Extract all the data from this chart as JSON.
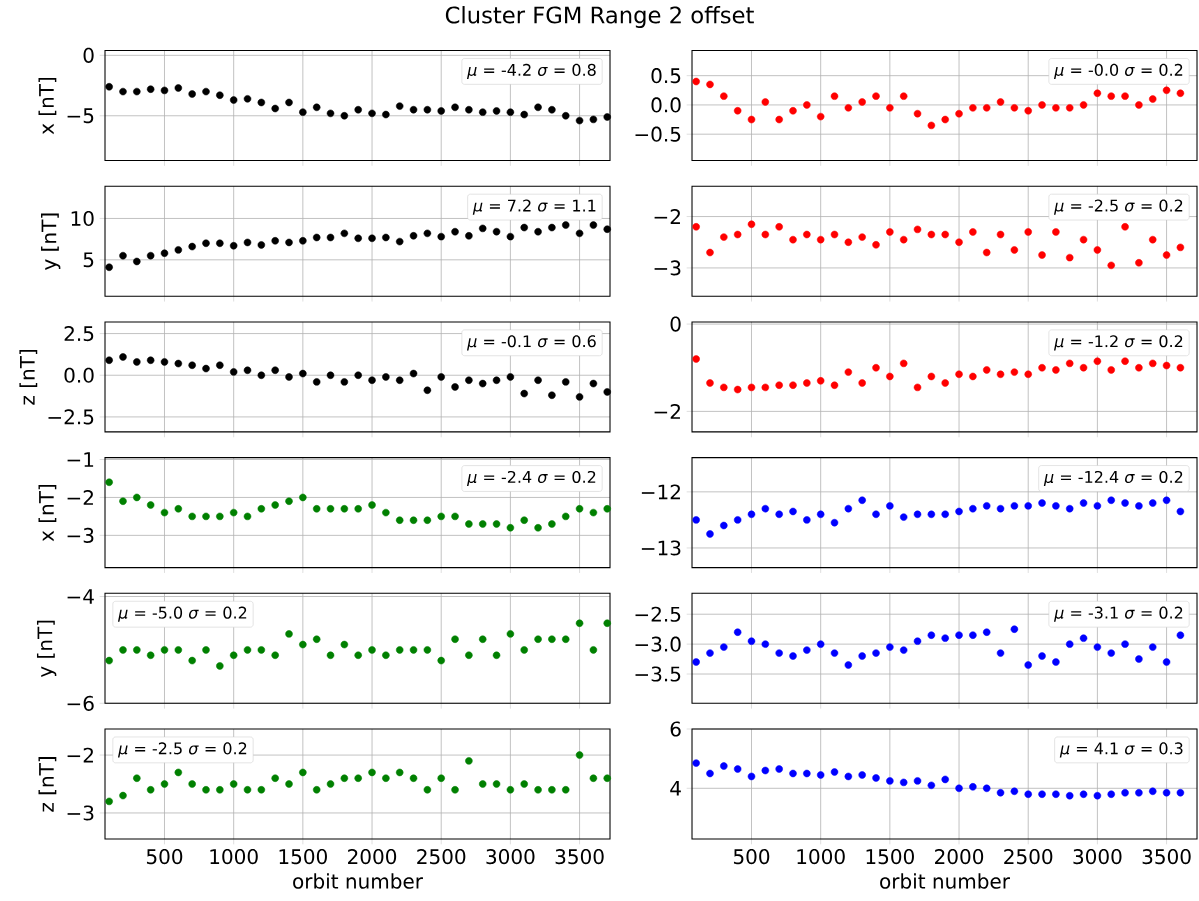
{
  "chart_data": [
    {
      "type": "scatter",
      "title": "Cluster FGM Range 2 offset",
      "ylabel": "x [nT]",
      "color": "#000000",
      "marker": "circle",
      "grid": true,
      "tick_labels": "y",
      "xlim": [
        70,
        3720
      ],
      "xticks": [
        500,
        1000,
        1500,
        2000,
        2500,
        3000,
        3500
      ],
      "ylim": [
        -8.7,
        0.4
      ],
      "yticks": [
        {
          "value": -5,
          "label": "−5"
        },
        0
      ],
      "annotations": [
        "*μ* = -4.2 *σ* = 0.8"
      ],
      "x": [
        100,
        200,
        300,
        400,
        500,
        600,
        700,
        800,
        900,
        1000,
        1100,
        1200,
        1300,
        1400,
        1500,
        1600,
        1700,
        1800,
        1900,
        2000,
        2100,
        2200,
        2300,
        2400,
        2500,
        2600,
        2700,
        2800,
        2900,
        3000,
        3100,
        3200,
        3300,
        3400,
        3500,
        3600,
        3700
      ],
      "values": [
        -2.6,
        -3.0,
        -3.0,
        -2.8,
        -2.9,
        -2.7,
        -3.2,
        -3.0,
        -3.3,
        -3.7,
        -3.6,
        -3.9,
        -4.4,
        -3.9,
        -4.7,
        -4.3,
        -4.8,
        -5.0,
        -4.5,
        -4.8,
        -4.9,
        -4.2,
        -4.5,
        -4.5,
        -4.6,
        -4.3,
        -4.5,
        -4.7,
        -4.6,
        -4.7,
        -4.9,
        -4.3,
        -4.5,
        -5.0,
        -5.4,
        -5.3,
        -5.1
      ]
    },
    {
      "type": "scatter",
      "color": "#ff0000",
      "marker": "circle",
      "grid": true,
      "tick_labels": "y",
      "xlim": [
        70,
        3720
      ],
      "xticks": [
        500,
        1000,
        1500,
        2000,
        2500,
        3000,
        3500
      ],
      "ylim": [
        -0.95,
        0.93
      ],
      "yticks": [
        {
          "value": -0.5,
          "label": "−0.5"
        },
        {
          "value": 0,
          "label": "0.0"
        },
        0.5
      ],
      "annotations": [
        "*μ* = -0.0 *σ* = 0.2"
      ],
      "x": [
        100,
        200,
        300,
        400,
        500,
        600,
        700,
        800,
        900,
        1000,
        1100,
        1200,
        1300,
        1400,
        1500,
        1600,
        1700,
        1800,
        1900,
        2000,
        2100,
        2200,
        2300,
        2400,
        2500,
        2600,
        2700,
        2800,
        2900,
        3000,
        3100,
        3200,
        3300,
        3400,
        3500,
        3600
      ],
      "values": [
        0.4,
        0.35,
        0.15,
        -0.1,
        -0.25,
        0.05,
        -0.25,
        -0.1,
        0.0,
        -0.2,
        0.15,
        -0.05,
        0.05,
        0.15,
        -0.05,
        0.15,
        -0.15,
        -0.35,
        -0.25,
        -0.15,
        -0.05,
        -0.05,
        0.05,
        -0.05,
        -0.1,
        0.0,
        -0.05,
        -0.05,
        0.0,
        0.2,
        0.15,
        0.15,
        0.0,
        0.1,
        0.25,
        0.2
      ]
    },
    {
      "type": "scatter",
      "ylabel": "y [nT]",
      "color": "#000000",
      "marker": "circle",
      "grid": true,
      "tick_labels": "y",
      "xlim": [
        70,
        3720
      ],
      "xticks": [
        500,
        1000,
        1500,
        2000,
        2500,
        3000,
        3500
      ],
      "ylim": [
        0.6,
        13.9
      ],
      "yticks": [
        5,
        10
      ],
      "annotations": [
        "*μ* = 7.2 *σ* = 1.1"
      ],
      "x": [
        100,
        200,
        300,
        400,
        500,
        600,
        700,
        800,
        900,
        1000,
        1100,
        1200,
        1300,
        1400,
        1500,
        1600,
        1700,
        1800,
        1900,
        2000,
        2100,
        2200,
        2300,
        2400,
        2500,
        2600,
        2700,
        2800,
        2900,
        3000,
        3100,
        3200,
        3300,
        3400,
        3500,
        3600,
        3700
      ],
      "values": [
        4.1,
        5.5,
        4.8,
        5.5,
        5.8,
        6.2,
        6.6,
        7.0,
        7.0,
        6.7,
        7.1,
        6.8,
        7.3,
        7.1,
        7.3,
        7.7,
        7.7,
        8.2,
        7.6,
        7.6,
        7.7,
        7.2,
        7.9,
        8.2,
        7.8,
        8.4,
        7.9,
        8.8,
        8.4,
        7.8,
        8.9,
        8.4,
        8.9,
        9.2,
        8.2,
        9.2,
        8.7
      ]
    },
    {
      "type": "scatter",
      "color": "#ff0000",
      "marker": "circle",
      "grid": true,
      "tick_labels": "y",
      "xlim": [
        70,
        3720
      ],
      "xticks": [
        500,
        1000,
        1500,
        2000,
        2500,
        3000,
        3500
      ],
      "ylim": [
        -3.55,
        -1.41
      ],
      "yticks": [
        {
          "value": -3,
          "label": "−3"
        },
        {
          "value": -2,
          "label": "−2"
        }
      ],
      "annotations": [
        "*μ* = -2.5 *σ* = 0.2"
      ],
      "x": [
        100,
        200,
        300,
        400,
        500,
        600,
        700,
        800,
        900,
        1000,
        1100,
        1200,
        1300,
        1400,
        1500,
        1600,
        1700,
        1800,
        1900,
        2000,
        2100,
        2200,
        2300,
        2400,
        2500,
        2600,
        2700,
        2800,
        2900,
        3000,
        3100,
        3200,
        3300,
        3400,
        3500,
        3600
      ],
      "values": [
        -2.2,
        -2.7,
        -2.4,
        -2.35,
        -2.15,
        -2.35,
        -2.2,
        -2.45,
        -2.35,
        -2.45,
        -2.35,
        -2.5,
        -2.4,
        -2.55,
        -2.3,
        -2.45,
        -2.25,
        -2.35,
        -2.35,
        -2.5,
        -2.3,
        -2.7,
        -2.35,
        -2.65,
        -2.3,
        -2.75,
        -2.3,
        -2.8,
        -2.45,
        -2.65,
        -2.95,
        -2.2,
        -2.9,
        -2.45,
        -2.75,
        -2.6
      ]
    },
    {
      "type": "scatter",
      "ylabel": "z [nT]",
      "color": "#000000",
      "marker": "circle",
      "grid": true,
      "tick_labels": "y",
      "xlim": [
        70,
        3720
      ],
      "xticks": [
        500,
        1000,
        1500,
        2000,
        2500,
        3000,
        3500
      ],
      "ylim": [
        -3.4,
        3.2
      ],
      "yticks": [
        {
          "value": -2.5,
          "label": "−2.5"
        },
        {
          "value": 0,
          "label": "0.0"
        },
        2.5
      ],
      "annotations": [
        "*μ* = -0.1 *σ* = 0.6"
      ],
      "x": [
        100,
        200,
        300,
        400,
        500,
        600,
        700,
        800,
        900,
        1000,
        1100,
        1200,
        1300,
        1400,
        1500,
        1600,
        1700,
        1800,
        1900,
        2000,
        2100,
        2200,
        2300,
        2400,
        2500,
        2600,
        2700,
        2800,
        2900,
        3000,
        3100,
        3200,
        3300,
        3400,
        3500,
        3600,
        3700
      ],
      "values": [
        0.9,
        1.1,
        0.8,
        0.9,
        0.8,
        0.7,
        0.6,
        0.4,
        0.6,
        0.2,
        0.3,
        0.0,
        0.3,
        -0.1,
        0.1,
        -0.4,
        0.0,
        -0.4,
        0.0,
        -0.3,
        -0.1,
        -0.3,
        0.1,
        -0.9,
        -0.1,
        -0.7,
        -0.3,
        -0.5,
        -0.3,
        -0.1,
        -1.1,
        -0.3,
        -1.2,
        -0.4,
        -1.3,
        -0.5,
        -1.0
      ]
    },
    {
      "type": "scatter",
      "color": "#ff0000",
      "marker": "circle",
      "grid": true,
      "tick_labels": "y",
      "xlim": [
        70,
        3720
      ],
      "xticks": [
        500,
        1000,
        1500,
        2000,
        2500,
        3000,
        3500
      ],
      "ylim": [
        -2.47,
        0.05
      ],
      "yticks": [
        {
          "value": -2,
          "label": "−2"
        },
        0
      ],
      "annotations": [
        "*μ* = -1.2 *σ* = 0.2"
      ],
      "x": [
        100,
        200,
        300,
        400,
        500,
        600,
        700,
        800,
        900,
        1000,
        1100,
        1200,
        1300,
        1400,
        1500,
        1600,
        1700,
        1800,
        1900,
        2000,
        2100,
        2200,
        2300,
        2400,
        2500,
        2600,
        2700,
        2800,
        2900,
        3000,
        3100,
        3200,
        3300,
        3400,
        3500,
        3600
      ],
      "values": [
        -0.8,
        -1.35,
        -1.45,
        -1.5,
        -1.45,
        -1.45,
        -1.4,
        -1.4,
        -1.35,
        -1.3,
        -1.4,
        -1.1,
        -1.35,
        -1.0,
        -1.2,
        -0.9,
        -1.45,
        -1.2,
        -1.35,
        -1.15,
        -1.2,
        -1.05,
        -1.15,
        -1.1,
        -1.15,
        -1.0,
        -1.05,
        -0.9,
        -1.0,
        -0.85,
        -1.05,
        -0.85,
        -1.0,
        -0.9,
        -0.95,
        -1.0
      ]
    },
    {
      "type": "scatter",
      "ylabel": "x [nT]",
      "color": "#008000",
      "marker": "circle",
      "grid": true,
      "tick_labels": "y",
      "xlim": [
        70,
        3720
      ],
      "xticks": [
        500,
        1000,
        1500,
        2000,
        2500,
        3000,
        3500
      ],
      "ylim": [
        -3.85,
        -0.95
      ],
      "yticks": [
        {
          "value": -3,
          "label": "−3"
        },
        {
          "value": -2,
          "label": "−2"
        },
        {
          "value": -1,
          "label": "−1"
        }
      ],
      "annotations": [
        "*μ* = -2.4 *σ* = 0.2"
      ],
      "x": [
        100,
        200,
        300,
        400,
        500,
        600,
        700,
        800,
        900,
        1000,
        1100,
        1200,
        1300,
        1400,
        1500,
        1600,
        1700,
        1800,
        1900,
        2000,
        2100,
        2200,
        2300,
        2400,
        2500,
        2600,
        2700,
        2800,
        2900,
        3000,
        3100,
        3200,
        3300,
        3400,
        3500,
        3600,
        3700
      ],
      "values": [
        -1.6,
        -2.1,
        -2.0,
        -2.2,
        -2.4,
        -2.3,
        -2.5,
        -2.5,
        -2.5,
        -2.4,
        -2.5,
        -2.3,
        -2.2,
        -2.1,
        -2.0,
        -2.3,
        -2.3,
        -2.3,
        -2.3,
        -2.2,
        -2.4,
        -2.6,
        -2.6,
        -2.6,
        -2.5,
        -2.5,
        -2.7,
        -2.7,
        -2.7,
        -2.8,
        -2.6,
        -2.8,
        -2.7,
        -2.5,
        -2.3,
        -2.4,
        -2.3
      ]
    },
    {
      "type": "scatter",
      "color": "#0000ff",
      "marker": "circle",
      "grid": true,
      "tick_labels": "y",
      "xlim": [
        70,
        3720
      ],
      "xticks": [
        500,
        1000,
        1500,
        2000,
        2500,
        3000,
        3500
      ],
      "ylim": [
        -13.35,
        -11.39
      ],
      "yticks": [
        {
          "value": -13,
          "label": "−13"
        },
        {
          "value": -12,
          "label": "−12"
        }
      ],
      "annotations": [
        "*μ* = -12.4 *σ* = 0.2"
      ],
      "x": [
        100,
        200,
        300,
        400,
        500,
        600,
        700,
        800,
        900,
        1000,
        1100,
        1200,
        1300,
        1400,
        1500,
        1600,
        1700,
        1800,
        1900,
        2000,
        2100,
        2200,
        2300,
        2400,
        2500,
        2600,
        2700,
        2800,
        2900,
        3000,
        3100,
        3200,
        3300,
        3400,
        3500,
        3600
      ],
      "values": [
        -12.5,
        -12.75,
        -12.6,
        -12.5,
        -12.4,
        -12.3,
        -12.4,
        -12.35,
        -12.5,
        -12.4,
        -12.55,
        -12.3,
        -12.15,
        -12.4,
        -12.25,
        -12.45,
        -12.4,
        -12.4,
        -12.4,
        -12.35,
        -12.3,
        -12.25,
        -12.3,
        -12.25,
        -12.25,
        -12.2,
        -12.25,
        -12.3,
        -12.2,
        -12.25,
        -12.15,
        -12.2,
        -12.25,
        -12.2,
        -12.15,
        -12.35
      ]
    },
    {
      "type": "scatter",
      "ylabel": "y [nT]",
      "color": "#008000",
      "marker": "circle",
      "grid": true,
      "tick_labels": "y",
      "xlim": [
        70,
        3720
      ],
      "xticks": [
        500,
        1000,
        1500,
        2000,
        2500,
        3000,
        3500
      ],
      "ylim": [
        -6.0,
        -3.94
      ],
      "yticks": [
        {
          "value": -6,
          "label": "−6"
        },
        {
          "value": -4,
          "label": "−4"
        }
      ],
      "annotations": [
        "*μ* = -5.0 *σ* = 0.2"
      ],
      "x": [
        100,
        200,
        300,
        400,
        500,
        600,
        700,
        800,
        900,
        1000,
        1100,
        1200,
        1300,
        1400,
        1500,
        1600,
        1700,
        1800,
        1900,
        2000,
        2100,
        2200,
        2300,
        2400,
        2500,
        2600,
        2700,
        2800,
        2900,
        3000,
        3100,
        3200,
        3300,
        3400,
        3500,
        3600,
        3700
      ],
      "values": [
        -5.2,
        -5.0,
        -5.0,
        -5.1,
        -5.0,
        -5.0,
        -5.2,
        -5.0,
        -5.3,
        -5.1,
        -5.0,
        -5.0,
        -5.1,
        -4.7,
        -4.9,
        -4.8,
        -5.1,
        -4.9,
        -5.1,
        -5.0,
        -5.1,
        -5.0,
        -5.0,
        -5.0,
        -5.2,
        -4.8,
        -5.1,
        -4.8,
        -5.1,
        -4.7,
        -5.0,
        -4.8,
        -4.8,
        -4.8,
        -4.5,
        -5.0,
        -4.5
      ]
    },
    {
      "type": "scatter",
      "color": "#0000ff",
      "marker": "circle",
      "grid": true,
      "tick_labels": "y",
      "xlim": [
        70,
        3720
      ],
      "xticks": [
        500,
        1000,
        1500,
        2000,
        2500,
        3000,
        3500
      ],
      "ylim": [
        -3.99,
        -2.15
      ],
      "yticks": [
        {
          "value": -3.5,
          "label": "−3.5"
        },
        {
          "value": -3,
          "label": "−3.0"
        },
        {
          "value": -2.5,
          "label": "−2.5"
        }
      ],
      "annotations": [
        "*μ* = -3.1 *σ* = 0.2"
      ],
      "x": [
        100,
        200,
        300,
        400,
        500,
        600,
        700,
        800,
        900,
        1000,
        1100,
        1200,
        1300,
        1400,
        1500,
        1600,
        1700,
        1800,
        1900,
        2000,
        2100,
        2200,
        2300,
        2400,
        2500,
        2600,
        2700,
        2800,
        2900,
        3000,
        3100,
        3200,
        3300,
        3400,
        3500,
        3600
      ],
      "values": [
        -3.3,
        -3.15,
        -3.05,
        -2.8,
        -2.95,
        -3.0,
        -3.15,
        -3.2,
        -3.1,
        -3.0,
        -3.15,
        -3.35,
        -3.2,
        -3.15,
        -3.05,
        -3.1,
        -2.95,
        -2.85,
        -2.9,
        -2.85,
        -2.85,
        -2.8,
        -3.15,
        -2.75,
        -3.35,
        -3.2,
        -3.3,
        -3.0,
        -2.9,
        -3.05,
        -3.15,
        -3.0,
        -3.25,
        -3.05,
        -3.3,
        -2.85
      ]
    },
    {
      "type": "scatter",
      "ylabel": "z [nT]",
      "xlabel": "orbit number",
      "color": "#008000",
      "marker": "circle",
      "grid": true,
      "xlim": [
        70,
        3720
      ],
      "xticks": [
        500,
        1000,
        1500,
        2000,
        2500,
        3000,
        3500
      ],
      "ylim": [
        -3.45,
        -1.55
      ],
      "yticks": [
        {
          "value": -3,
          "label": "−3"
        },
        {
          "value": -2,
          "label": "−2"
        }
      ],
      "annotations": [
        "*μ* = -2.5 *σ* = 0.2"
      ],
      "x": [
        100,
        200,
        300,
        400,
        500,
        600,
        700,
        800,
        900,
        1000,
        1100,
        1200,
        1300,
        1400,
        1500,
        1600,
        1700,
        1800,
        1900,
        2000,
        2100,
        2200,
        2300,
        2400,
        2500,
        2600,
        2700,
        2800,
        2900,
        3000,
        3100,
        3200,
        3300,
        3400,
        3500,
        3600,
        3700
      ],
      "values": [
        -2.8,
        -2.7,
        -2.4,
        -2.6,
        -2.5,
        -2.3,
        -2.5,
        -2.6,
        -2.6,
        -2.5,
        -2.6,
        -2.6,
        -2.4,
        -2.5,
        -2.3,
        -2.6,
        -2.5,
        -2.4,
        -2.4,
        -2.3,
        -2.4,
        -2.3,
        -2.4,
        -2.6,
        -2.4,
        -2.6,
        -2.1,
        -2.5,
        -2.5,
        -2.6,
        -2.5,
        -2.6,
        -2.6,
        -2.6,
        -2.0,
        -2.4,
        -2.4
      ]
    },
    {
      "type": "scatter",
      "xlabel": "orbit number",
      "color": "#0000ff",
      "marker": "circle",
      "grid": true,
      "xlim": [
        70,
        3720
      ],
      "xticks": [
        500,
        1000,
        1500,
        2000,
        2500,
        3000,
        3500
      ],
      "ylim": [
        2.29,
        6
      ],
      "yticks": [
        4,
        6
      ],
      "annotations": [
        "*μ* = 4.1 *σ* = 0.3"
      ],
      "x": [
        100,
        200,
        300,
        400,
        500,
        600,
        700,
        800,
        900,
        1000,
        1100,
        1200,
        1300,
        1400,
        1500,
        1600,
        1700,
        1800,
        1900,
        2000,
        2100,
        2200,
        2300,
        2400,
        2500,
        2600,
        2700,
        2800,
        2900,
        3000,
        3100,
        3200,
        3300,
        3400,
        3500,
        3600
      ],
      "values": [
        4.85,
        4.5,
        4.75,
        4.65,
        4.4,
        4.6,
        4.65,
        4.5,
        4.5,
        4.45,
        4.55,
        4.4,
        4.45,
        4.35,
        4.25,
        4.2,
        4.25,
        4.1,
        4.3,
        4.0,
        4.05,
        4.0,
        3.85,
        3.9,
        3.8,
        3.8,
        3.8,
        3.75,
        3.8,
        3.75,
        3.8,
        3.85,
        3.85,
        3.9,
        3.85,
        3.85
      ]
    }
  ]
}
